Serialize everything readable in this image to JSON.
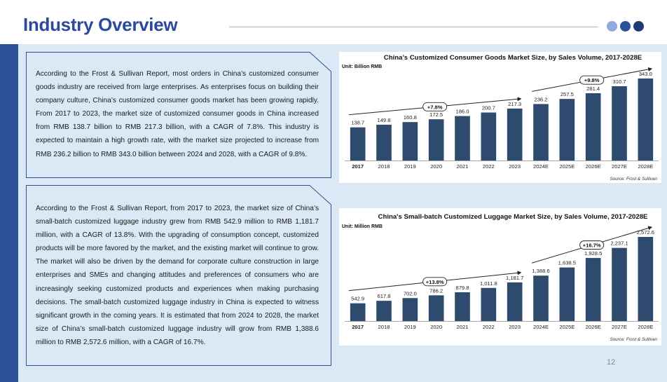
{
  "header": {
    "title": "Industry Overview",
    "dot_colors": [
      "#8faadc",
      "#2e5299",
      "#1f3b73"
    ]
  },
  "colors": {
    "accent": "#2e5299",
    "title": "#2b4a9b",
    "background_panel": "#dbe8f5",
    "bar": "#2e4a6f"
  },
  "text_blocks": [
    {
      "text": "According to the Frost & Sullivan Report, most orders in China’s customized consumer goods industry are received from large enterprises. As enterprises focus on building their company culture, China’s customized consumer goods market has been growing rapidly. From 2017 to 2023, the market size of customized consumer goods in China increased from RMB 138.7 billion to RMB 217.3 billion, with a CAGR of 7.8%. This industry is expected to maintain a high growth rate, with the market size projected to increase from RMB 236.2 billion to RMB 343.0 billion between 2024 and 2028, with a CAGR of 9.8%."
    },
    {
      "text": "According to the Frost & Sullivan Report, from 2017 to 2023, the market size of China’s small-batch customized luggage industry grew from RMB 542.9 million to RMB 1,181.7 million, with a CAGR of 13.8%. With the upgrading of consumption concept, customized products will be more favored by the market, and the existing market will continue to grow. The market will also be driven by the demand for corporate culture construction in large enterprises and SMEs and changing attitudes and preferences of consumers who are increasingly seeking customized products and experiences when making purchasing decisions. The small-batch customized luggage industry in China is expected to witness significant growth in the coming years. It is estimated that from 2024 to 2028, the market size of China’s small-batch customized luggage industry will grow from RMB 1,388.6 million to RMB 2,572.6 million, with a CAGR of 16.7%."
    }
  ],
  "chart_data": [
    {
      "type": "bar",
      "title": "China’s Customized Consumer Goods Market Size, by Sales Volume, 2017-2028E",
      "unit": "Unit: Billion RMB",
      "categories": [
        "2017",
        "2018",
        "2019",
        "2020",
        "2021",
        "2022",
        "2023",
        "2024E",
        "2025E",
        "2026E",
        "2027E",
        "2028E"
      ],
      "values": [
        138.7,
        149.8,
        160.8,
        172.5,
        186.0,
        200.7,
        217.3,
        236.2,
        257.5,
        281.4,
        310.7,
        343.0
      ],
      "value_labels": [
        "138.7",
        "149.8",
        "160.8",
        "172.5",
        "186.0",
        "200.7",
        "217.3",
        "236.2",
        "257.5",
        "281.4",
        "310.7",
        "343.0"
      ],
      "ylim": [
        0,
        343.0
      ],
      "annotations": [
        {
          "label": "+7.8%",
          "from_index": 0,
          "to_index": 6
        },
        {
          "label": "+9.8%",
          "from_index": 7,
          "to_index": 11
        }
      ],
      "source": "Source: Frost & Sullivan"
    },
    {
      "type": "bar",
      "title": "China's Small-batch Customized Luggage Market Size, by Sales Volume, 2017-2028E",
      "unit": "Unit: Million RMB",
      "categories": [
        "2017",
        "2018",
        "2019",
        "2020",
        "2021",
        "2022",
        "2023",
        "2024E",
        "2025E",
        "2026E",
        "2027E",
        "2028E"
      ],
      "values": [
        542.9,
        617.8,
        702.0,
        786.2,
        879.8,
        1011.8,
        1181.7,
        1388.6,
        1638.5,
        1928.5,
        2237.1,
        2572.6
      ],
      "value_labels": [
        "542.9",
        "617.8",
        "702.0",
        "786.2",
        "879.8",
        "1,011.8",
        "1,181.7",
        "1,388.6",
        "1,638.5",
        "1,928.5",
        "2,237.1",
        "2,572.6"
      ],
      "ylim": [
        0,
        2572.6
      ],
      "annotations": [
        {
          "label": "+13.8%",
          "from_index": 0,
          "to_index": 6
        },
        {
          "label": "+16.7%",
          "from_index": 7,
          "to_index": 11
        }
      ],
      "source": "Source: Frost & Sullivan"
    }
  ],
  "footer": {
    "page_number": "12"
  }
}
